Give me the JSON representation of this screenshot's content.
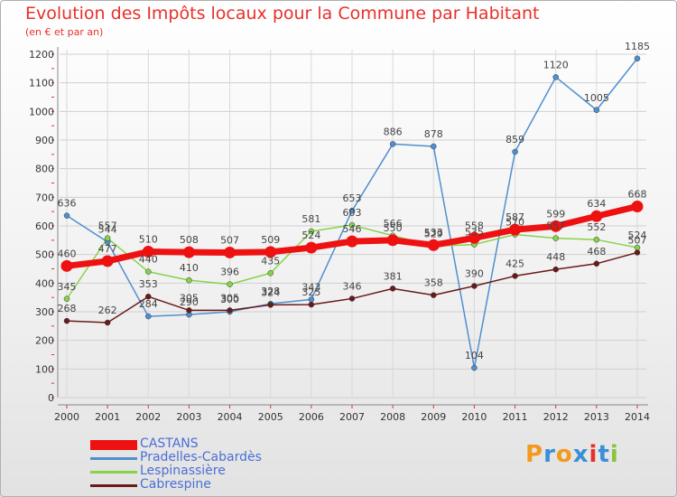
{
  "title": "Evolution des Impôts locaux pour la Commune par Habitant",
  "subtitle": "(en € et par an)",
  "logo_text": "Proxiti",
  "colors": {
    "title": "#e8302a",
    "logo_letters": [
      "#f39a1e",
      "#3a8fd9",
      "#f39a1e",
      "#3a8fd9",
      "#e8302a",
      "#3a8fd9",
      "#8ac43f"
    ]
  },
  "chart_data": {
    "type": "line",
    "title": "Evolution des Impôts locaux pour la Commune par Habitant",
    "subtitle": "(en € et par an)",
    "xlabel": "",
    "ylabel": "",
    "x": [
      "2000",
      "2001",
      "2002",
      "2003",
      "2004",
      "2005",
      "2006",
      "2007",
      "2008",
      "2009",
      "2010",
      "2011",
      "2012",
      "2013",
      "2014"
    ],
    "ylim": [
      0,
      1200
    ],
    "yticks": [
      0,
      100,
      200,
      300,
      400,
      500,
      600,
      700,
      800,
      900,
      1000,
      1100,
      1200
    ],
    "grid": true,
    "legend_position": "bottom-left",
    "series": [
      {
        "name": "CASTANS",
        "color": "#ee1111",
        "emphasis": true,
        "values": [
          460,
          477,
          510,
          508,
          507,
          509,
          524,
          546,
          550,
          533,
          558,
          587,
          599,
          634,
          668
        ],
        "labels": [
          "460",
          "477",
          "510",
          "508",
          "507",
          "509",
          "524",
          "546",
          "550",
          "533",
          "558",
          "587",
          "599",
          "634",
          "668"
        ]
      },
      {
        "name": "Pradelles-Cabardès",
        "color": "#4f8fd0",
        "values": [
          636,
          544,
          284,
          290,
          300,
          328,
          343,
          653,
          886,
          878,
          104,
          859,
          1120,
          1005,
          1185
        ],
        "labels": [
          "636",
          "544",
          "284",
          "290",
          "300",
          "328",
          "343",
          "653",
          "886",
          "878",
          "104",
          "859",
          "1120",
          "1005",
          "1185"
        ]
      },
      {
        "name": "Lespinassière",
        "color": "#86d34a",
        "values": [
          345,
          557,
          440,
          410,
          396,
          435,
          581,
          603,
          566,
          529,
          535,
          570,
          557,
          552,
          524
        ],
        "labels": [
          "345",
          "557",
          "440",
          "410",
          "396",
          "435",
          "581",
          "603",
          "566",
          "529",
          "535",
          "570",
          "557",
          "552",
          "524"
        ]
      },
      {
        "name": "Cabrespine",
        "color": "#6a1a1a",
        "values": [
          268,
          262,
          353,
          305,
          305,
          324,
          325,
          346,
          381,
          358,
          390,
          425,
          448,
          468,
          507
        ],
        "labels": [
          "268",
          "262",
          "353",
          "305",
          "305",
          "324",
          "325",
          "346",
          "381",
          "358",
          "390",
          "425",
          "448",
          "468",
          "507"
        ]
      }
    ]
  }
}
